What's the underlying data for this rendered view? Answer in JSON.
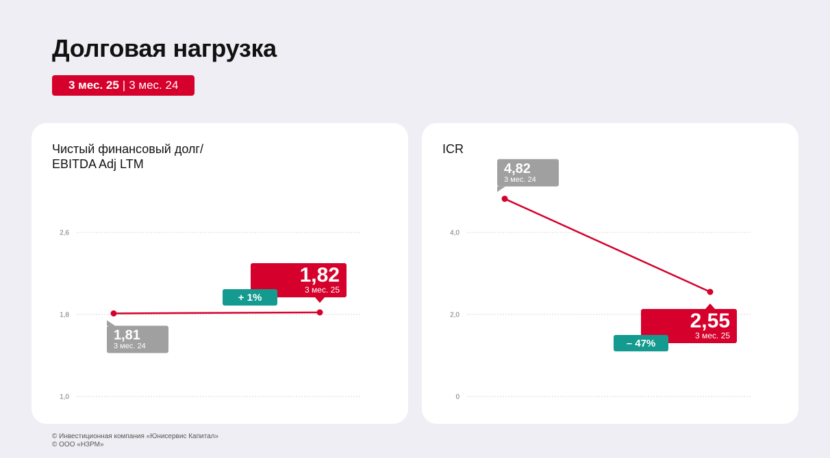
{
  "page": {
    "title": "Долговая нагрузка",
    "period_current": "3 мес. 25",
    "period_separator": "|",
    "period_previous": "3 мес. 24"
  },
  "colors": {
    "accent": "#d5002b",
    "previous": "#a0a0a0",
    "change": "#159a90",
    "background": "#efeef4"
  },
  "chart_data": [
    {
      "type": "line",
      "title": "Чистый финансовый долг/\nEBITDA Adj LTM",
      "ylim": [
        1.0,
        2.6
      ],
      "yticks": [
        "2,6",
        "1,8",
        "1,0"
      ],
      "ytick_values": [
        2.6,
        1.8,
        1.0
      ],
      "grid": true,
      "points": [
        {
          "period": "3 мес. 24",
          "value": 1.81,
          "label": "1,81"
        },
        {
          "period": "3 мес. 25",
          "value": 1.82,
          "label": "1,82"
        }
      ],
      "change_label": "+ 1%"
    },
    {
      "type": "line",
      "title": "ICR",
      "ylim": [
        0,
        4.0
      ],
      "yticks": [
        "4,0",
        "2,0",
        "0"
      ],
      "ytick_values": [
        4.0,
        2.0,
        0
      ],
      "grid": true,
      "points": [
        {
          "period": "3 мес. 24",
          "value": 4.82,
          "label": "4,82"
        },
        {
          "period": "3 мес. 25",
          "value": 2.55,
          "label": "2,55"
        }
      ],
      "change_label": "– 47%"
    }
  ],
  "footer": {
    "line1": "© Инвестиционная компания «Юнисервис Капитал»",
    "line2": "© ООО «НЗРМ»"
  }
}
